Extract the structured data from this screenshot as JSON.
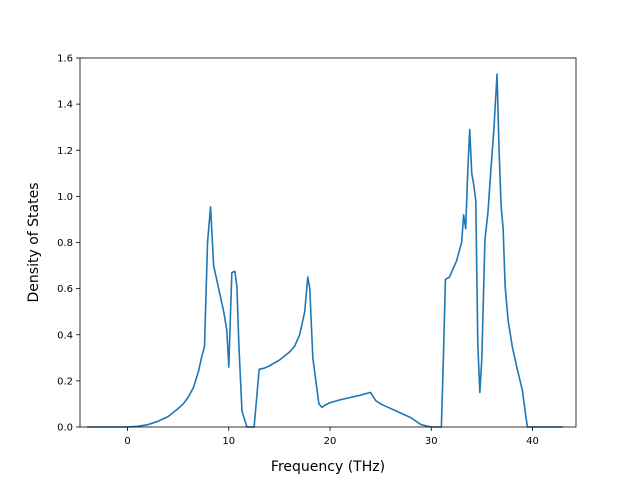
{
  "chart_data": {
    "type": "line",
    "title": "",
    "xlabel": "Frequency (THz)",
    "ylabel": "Density of States",
    "xlim": [
      -4.7,
      44.3
    ],
    "ylim": [
      0,
      1.6
    ],
    "xticks": [
      0,
      10,
      20,
      30,
      40
    ],
    "yticks": [
      0.0,
      0.2,
      0.4,
      0.6,
      0.8,
      1.0,
      1.2,
      1.4,
      1.6
    ],
    "xtick_labels": [
      "0",
      "10",
      "20",
      "30",
      "40"
    ],
    "ytick_labels": [
      "0.0",
      "0.2",
      "0.4",
      "0.6",
      "0.8",
      "1.0",
      "1.2",
      "1.4",
      "1.6"
    ],
    "grid": false,
    "line_color": "#1f77b4",
    "series": [
      {
        "x": [
          -4.0,
          0.0,
          1.0,
          2.0,
          3.0,
          4.0,
          5.0,
          5.5,
          6.0,
          6.5,
          7.0,
          7.3,
          7.6,
          7.9,
          8.2,
          8.5,
          9.0,
          9.5,
          9.8,
          10.0,
          10.3,
          10.6,
          10.8,
          11.0,
          11.3,
          11.5,
          11.8,
          12.0,
          12.3,
          12.5,
          13.0,
          13.5,
          14.0,
          15.0,
          16.0,
          16.5,
          17.0,
          17.5,
          17.8,
          18.0,
          18.3,
          18.6,
          18.9,
          19.2,
          19.5,
          20.0,
          21.0,
          22.0,
          23.0,
          24.0,
          24.5,
          25.0,
          26.0,
          27.0,
          28.0,
          29.0,
          30.0,
          30.3,
          30.5,
          31.0,
          31.2,
          31.4,
          31.6,
          31.8,
          32.0,
          32.5,
          33.0,
          33.2,
          33.4,
          33.6,
          33.8,
          34.0,
          34.2,
          34.4,
          34.6,
          34.8,
          35.0,
          35.3,
          35.6,
          35.9,
          36.2,
          36.5,
          36.7,
          36.9,
          37.1,
          37.3,
          37.6,
          38.0,
          38.5,
          39.0,
          39.3,
          39.5,
          40.0,
          43.0
        ],
        "y": [
          0.0,
          0.0,
          0.003,
          0.01,
          0.025,
          0.045,
          0.08,
          0.1,
          0.13,
          0.17,
          0.24,
          0.3,
          0.35,
          0.8,
          0.955,
          0.7,
          0.6,
          0.5,
          0.42,
          0.26,
          0.67,
          0.675,
          0.61,
          0.35,
          0.07,
          0.04,
          0.0,
          0.0,
          0.0,
          0.0,
          0.25,
          0.255,
          0.265,
          0.29,
          0.325,
          0.35,
          0.4,
          0.5,
          0.65,
          0.6,
          0.3,
          0.2,
          0.1,
          0.085,
          0.095,
          0.105,
          0.118,
          0.128,
          0.138,
          0.15,
          0.115,
          0.1,
          0.08,
          0.06,
          0.04,
          0.01,
          0.0,
          0.0,
          0.0,
          0.0,
          0.3,
          0.64,
          0.645,
          0.65,
          0.67,
          0.72,
          0.8,
          0.92,
          0.86,
          1.1,
          1.29,
          1.1,
          1.05,
          0.98,
          0.36,
          0.15,
          0.3,
          0.81,
          0.93,
          1.12,
          1.3,
          1.53,
          1.2,
          0.96,
          0.86,
          0.61,
          0.46,
          0.35,
          0.25,
          0.16,
          0.06,
          0.0,
          0.0,
          0.0
        ]
      }
    ]
  }
}
